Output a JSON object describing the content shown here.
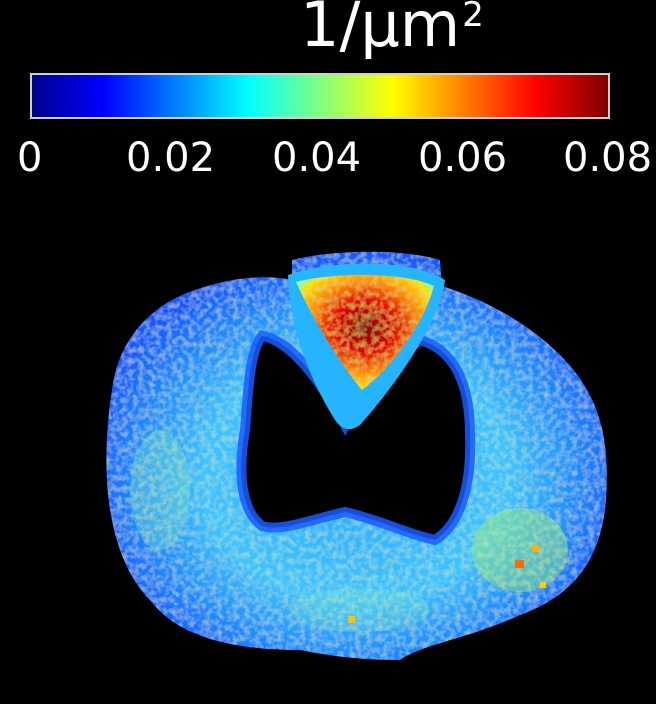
{
  "colorbar": {
    "unit_base": "1/μm",
    "unit_exponent": "2",
    "ticks": [
      "0",
      "0.02",
      "0.04",
      "0.06",
      "0.08"
    ],
    "range": [
      0,
      0.08
    ],
    "colormap": "jet"
  },
  "colors": {
    "background": "#000000",
    "low": "#0000ff",
    "mid": "#00ffff",
    "high": "#ff0000",
    "max": "#7f0000"
  }
}
